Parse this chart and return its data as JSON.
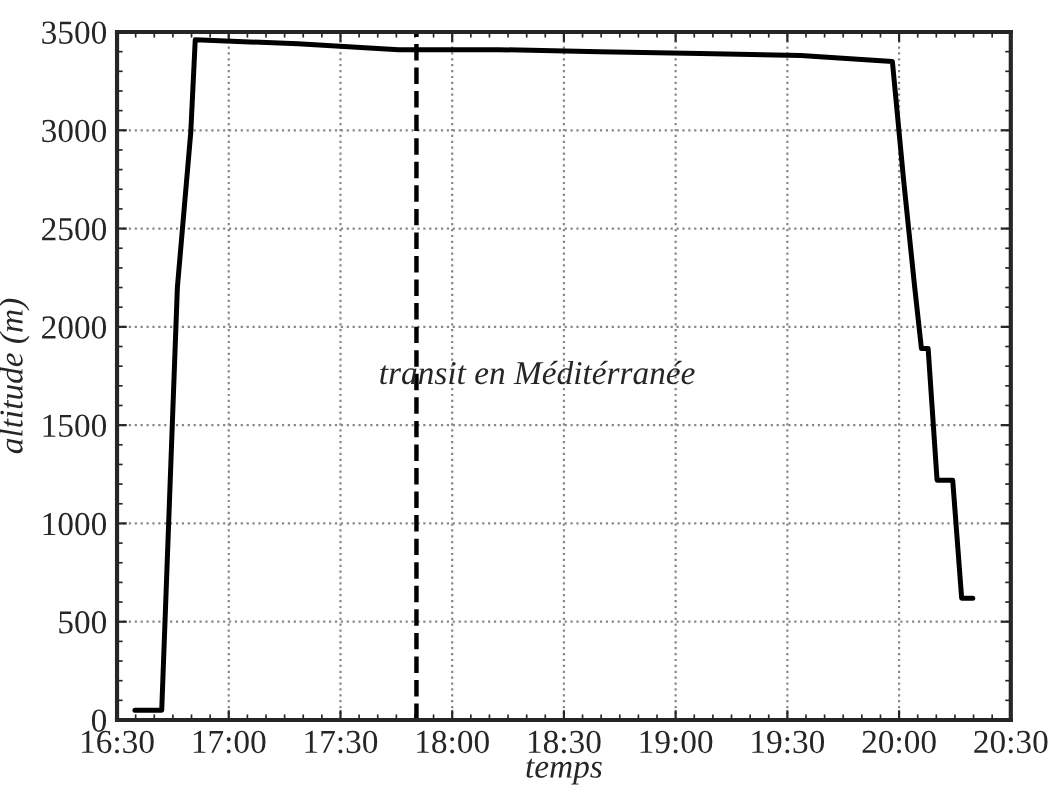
{
  "chart_data": {
    "type": "line",
    "xlabel": "temps",
    "ylabel": "altitude (m)",
    "annotations": [
      "transit en Méditérranée"
    ],
    "x": [
      16.58,
      16.7,
      16.77,
      16.83,
      16.85,
      17.31,
      17.76,
      18.21,
      18.66,
      19.11,
      19.56,
      19.97,
      20.02,
      20.07,
      20.1,
      20.13,
      20.17,
      20.24,
      20.28,
      20.33
    ],
    "series": [
      {
        "color": "#000000",
        "values": [
          50,
          50,
          2200,
          2990,
          3460,
          3440,
          3410,
          3410,
          3400,
          3390,
          3380,
          3350,
          2750,
          2200,
          1890,
          1890,
          1220,
          1220,
          620,
          620
        ]
      }
    ],
    "xlim": [
      16.5,
      20.5
    ],
    "xticks": [
      {
        "value": 16.5,
        "label": "16:30"
      },
      {
        "value": 17.0,
        "label": "17:00"
      },
      {
        "value": 17.5,
        "label": "17:30"
      },
      {
        "value": 18.0,
        "label": "18:00"
      },
      {
        "value": 18.5,
        "label": "18:30"
      },
      {
        "value": 19.0,
        "label": "19:00"
      },
      {
        "value": 19.5,
        "label": "19:30"
      },
      {
        "value": 20.0,
        "label": "20:00"
      },
      {
        "value": 20.5,
        "label": "20:30"
      }
    ],
    "ylim": [
      0,
      3500
    ],
    "yticks": [
      0,
      500,
      1000,
      1500,
      2000,
      2500,
      3000,
      3500
    ],
    "ref_lines": [
      {
        "axis": "x",
        "value": 17.84,
        "color": "#000000",
        "line_style": "dashed"
      }
    ],
    "grid": true,
    "line_style": "solid",
    "marker": "none",
    "legend": false
  }
}
